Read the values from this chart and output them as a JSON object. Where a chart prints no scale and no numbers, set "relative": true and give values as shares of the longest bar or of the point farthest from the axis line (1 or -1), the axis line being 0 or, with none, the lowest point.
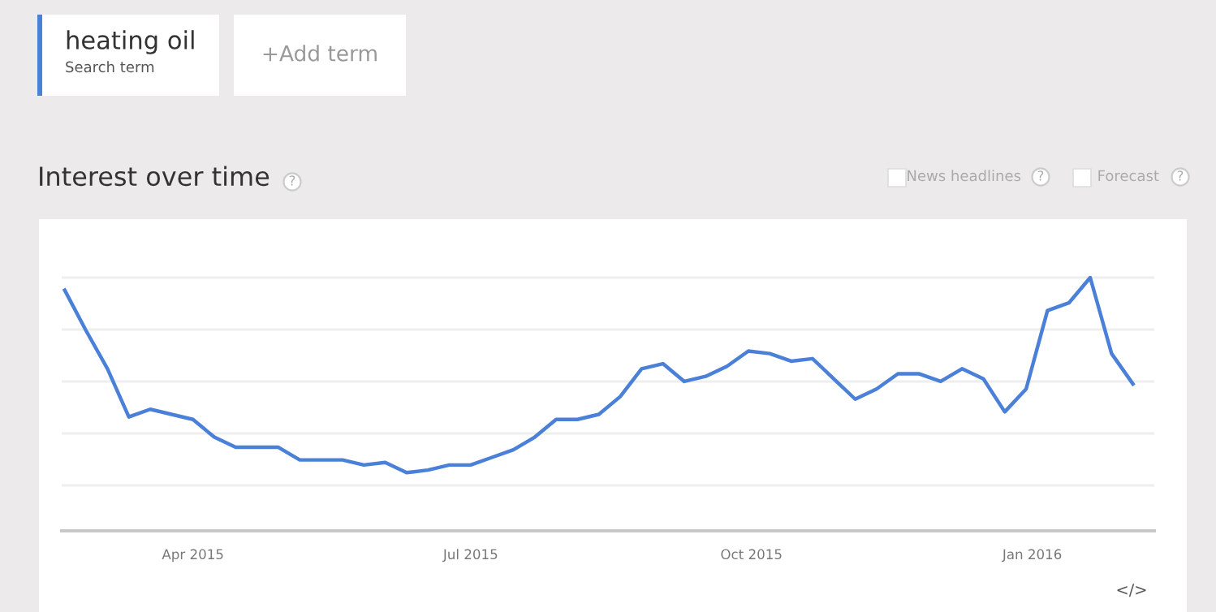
{
  "chart_data": {
    "type": "line",
    "title": "Interest over time",
    "relative": true,
    "x": [
      "2015-02-18",
      "2015-02-25",
      "2015-03-04",
      "2015-03-11",
      "2015-03-18",
      "2015-03-25",
      "2015-04-01",
      "2015-04-08",
      "2015-04-15",
      "2015-04-22",
      "2015-04-29",
      "2015-05-06",
      "2015-05-13",
      "2015-05-20",
      "2015-05-27",
      "2015-06-03",
      "2015-06-10",
      "2015-06-17",
      "2015-06-24",
      "2015-07-01",
      "2015-07-08",
      "2015-07-15",
      "2015-07-22",
      "2015-07-29",
      "2015-08-05",
      "2015-08-12",
      "2015-08-19",
      "2015-08-26",
      "2015-09-02",
      "2015-09-09",
      "2015-09-16",
      "2015-09-23",
      "2015-09-30",
      "2015-10-07",
      "2015-10-14",
      "2015-10-21",
      "2015-10-28",
      "2015-11-04",
      "2015-11-11",
      "2015-11-18",
      "2015-11-25",
      "2015-12-02",
      "2015-12-09",
      "2015-12-16",
      "2015-12-23",
      "2015-12-30",
      "2016-01-06",
      "2016-01-13",
      "2016-01-20",
      "2016-01-27",
      "2016-02-03"
    ],
    "series": [
      {
        "name": "heating oil",
        "color": "#4a80d8",
        "values": [
          0.95,
          0.79,
          0.64,
          0.45,
          0.48,
          0.46,
          0.44,
          0.37,
          0.33,
          0.33,
          0.33,
          0.28,
          0.28,
          0.28,
          0.26,
          0.27,
          0.23,
          0.24,
          0.26,
          0.26,
          0.29,
          0.32,
          0.37,
          0.44,
          0.44,
          0.46,
          0.53,
          0.64,
          0.66,
          0.59,
          0.61,
          0.65,
          0.71,
          0.7,
          0.67,
          0.68,
          0.6,
          0.52,
          0.56,
          0.62,
          0.62,
          0.59,
          0.64,
          0.6,
          0.47,
          0.56,
          0.87,
          0.9,
          1,
          0.7,
          0.58
        ]
      }
    ],
    "xlim": [
      "2015-02-17",
      "2016-02-10"
    ],
    "xticks": [
      {
        "value": "2015-04-01",
        "label": "Apr 2015"
      },
      {
        "value": "2015-07-01",
        "label": "Jul 2015"
      },
      {
        "value": "2015-10-01",
        "label": "Oct 2015"
      },
      {
        "value": "2016-01-01",
        "label": "Jan 2016"
      }
    ],
    "grid": "y",
    "legend": "top left",
    "marker": "none",
    "line_style": "solid",
    "annotations": [
      "Search term",
      "+Add term",
      "?",
      "News headlines",
      "?",
      "Forecast",
      "?",
      "</>"
    ]
  }
}
